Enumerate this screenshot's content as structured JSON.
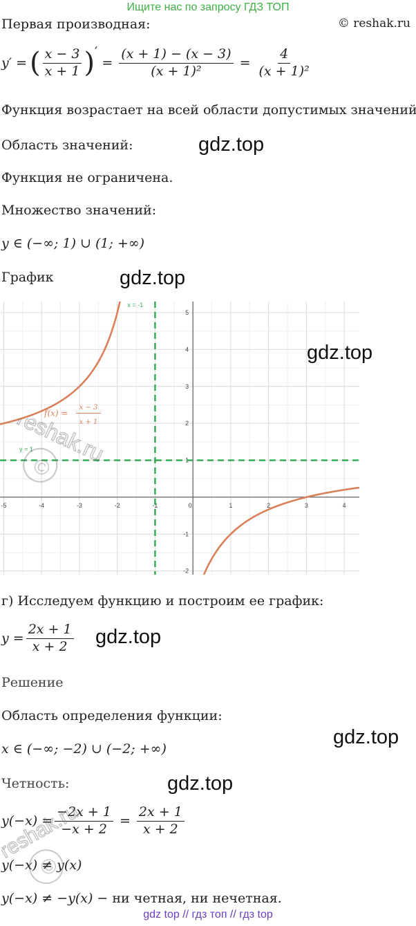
{
  "top_banner": "Ищите нас по запросу ГДЗ ТОП",
  "copyright": "© reshak.ru",
  "watermark_text": "gdz.top",
  "stamp_text": "reshak.ru",
  "lines": {
    "first_derivative": "Первая производная:",
    "increasing": "Функция возрастает на всей области допустимых значений.",
    "range_heading": "Область значений:",
    "unbounded": "Функция не ограничена.",
    "value_set": "Множество значений:",
    "range_expr": "y ∈ (−∞; 1) ∪ (1; +∞)",
    "graph_heading": "График",
    "part_g": "г) Исследуем функцию и построим ее график:",
    "solution": "Решение",
    "domain_heading": "Область определения функции:",
    "domain_expr": "x ∈ (−∞; −2) ∪ (−2; +∞)",
    "parity": "Четность:",
    "neq1": "y(−x) ≠ y(x)",
    "neq2_math": "y(−x) ≠ −y(x)",
    "neq2_text": " − ни четная, ни нечетная."
  },
  "derivative": {
    "lhs": "y′ =",
    "f_num": "x − 3",
    "f_den": "x + 1",
    "prime": "′",
    "mid_num": "(x + 1) − (x − 3)",
    "mid_den": "(x + 1)²",
    "res_num": "4",
    "res_den": "(x + 1)²"
  },
  "function_g": {
    "lhs": "y =",
    "num": "2x + 1",
    "den": "x + 2"
  },
  "parity_eq": {
    "lhs": "y(−x) =",
    "num1": "−2x + 1",
    "den1": "−x + 2",
    "num2": "2x + 1",
    "den2": "x + 2"
  },
  "bottom_banner": "gdz top  //  гдз топ  //  гдз top",
  "graph": {
    "asymptote_x_label": "x = -1",
    "asymptote_y_label": "y = 1",
    "function_label_lhs": "f(x) =",
    "function_label_num": "x − 3",
    "function_label_den": "x + 1",
    "x_ticks": [
      "-5",
      "-4",
      "-3",
      "-2",
      "-1",
      "0",
      "1",
      "2",
      "3",
      "4"
    ],
    "y_ticks": [
      "5",
      "4",
      "3",
      "2",
      "1",
      "-1",
      "-2"
    ],
    "x_range": [
      -5.1,
      4.4
    ],
    "y_range": [
      -2.1,
      5.3
    ],
    "colors": {
      "curve": "#d9805a",
      "asymptote": "#2fa84f",
      "grid": "#dcdcdc",
      "axis": "#666666"
    }
  }
}
